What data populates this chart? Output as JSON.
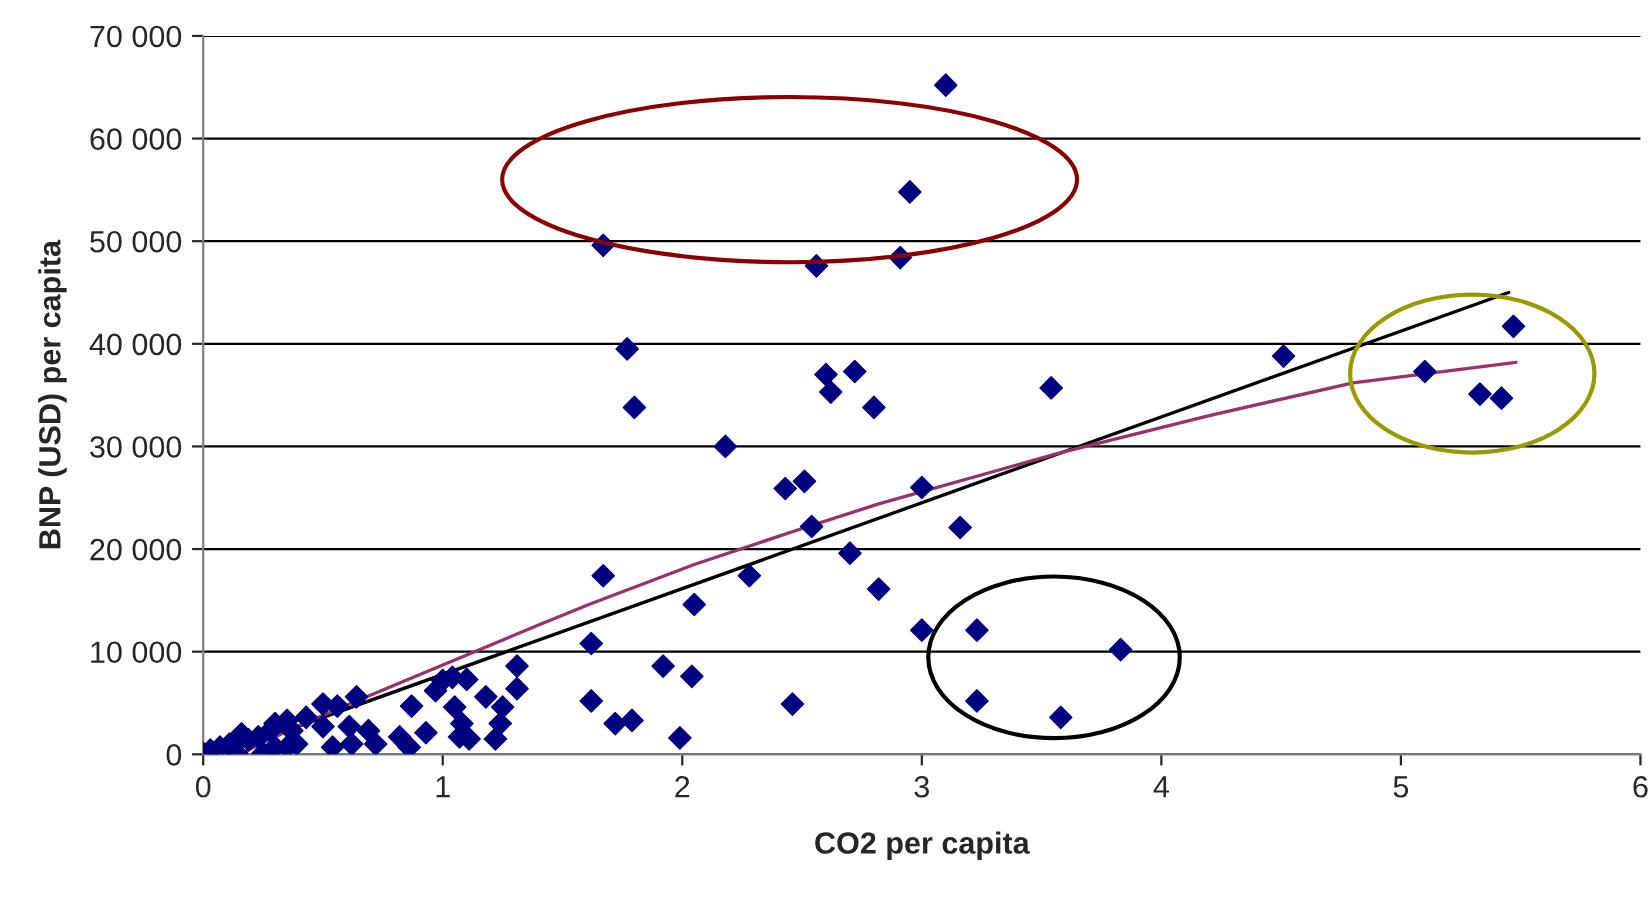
{
  "chart_data": {
    "type": "scatter",
    "xlabel": "CO2 per capita",
    "ylabel": "BNP (USD) per capita",
    "xlim": [
      0,
      6
    ],
    "xticks": [
      0,
      1,
      2,
      3,
      4,
      5,
      6
    ],
    "ylim": [
      0,
      70000
    ],
    "yticks": [
      {
        "value": 0,
        "label": "0"
      },
      {
        "value": 10000,
        "label": "10 000"
      },
      {
        "value": 20000,
        "label": "20 000"
      },
      {
        "value": 30000,
        "label": "30 000"
      },
      {
        "value": 40000,
        "label": "40 000"
      },
      {
        "value": 50000,
        "label": "50 000"
      },
      {
        "value": 60000,
        "label": "60 000"
      },
      {
        "value": 70000,
        "label": "70 000"
      }
    ],
    "grid": "y",
    "legend": false,
    "series": [
      {
        "marker": "diamond",
        "color": "#000080",
        "x": [
          1.67,
          2.56,
          2.91,
          2.95,
          3.1,
          1.77,
          1.8,
          2.18,
          2.6,
          2.72,
          2.62,
          2.8,
          3.54,
          2.43,
          2.51,
          2.54,
          3.0,
          3.16,
          1.67,
          2.28,
          2.7,
          2.05,
          2.82,
          1.62,
          3.0,
          3.23,
          1.92,
          2.04,
          1.62,
          1.72,
          1.79,
          1.99,
          2.46,
          3.23,
          3.58,
          5.47,
          4.51,
          5.1,
          5.33,
          5.42,
          3.83,
          0.5,
          0.56,
          0.64,
          0.5,
          0.54,
          0.61,
          0.62,
          0.69,
          0.72,
          0.82,
          0.86,
          0.87,
          0.93,
          0.97,
          1.0,
          1.04,
          1.1,
          1.05,
          1.08,
          1.07,
          1.11,
          1.18,
          1.25,
          1.24,
          1.22,
          1.31,
          1.31,
          0.0,
          0.03,
          0.07,
          0.11,
          0.16,
          0.19,
          0.23,
          0.28,
          0.3,
          0.35,
          0.37,
          0.35,
          0.3,
          0.43,
          0.25,
          0.14,
          0.39
        ],
        "values": [
          49600,
          47600,
          48400,
          54800,
          65200,
          39500,
          33800,
          30000,
          37000,
          37300,
          35300,
          33800,
          35700,
          25900,
          26600,
          22200,
          26000,
          22100,
          17400,
          17400,
          19600,
          14600,
          16100,
          10800,
          12100,
          12100,
          8600,
          7600,
          5200,
          3000,
          3300,
          1600,
          4900,
          5200,
          3600,
          41700,
          38800,
          37300,
          35100,
          34700,
          10200,
          4900,
          4700,
          5600,
          2700,
          700,
          2700,
          1000,
          2300,
          1000,
          1700,
          700,
          4700,
          2100,
          6200,
          7200,
          7500,
          7300,
          4600,
          3000,
          1700,
          1500,
          5600,
          4600,
          3000,
          1500,
          8600,
          6400,
          100,
          400,
          700,
          1000,
          2000,
          1400,
          1700,
          2300,
          3000,
          3300,
          2300,
          700,
          700,
          3600,
          100,
          100,
          1000
        ]
      },
      {
        "type": "line",
        "marker": "none",
        "color": "#000000",
        "x": [
          0.07,
          5.45
        ],
        "values": [
          0,
          45000
        ]
      },
      {
        "type": "line",
        "marker": "none",
        "color": "#993366",
        "x": [
          0.15,
          0.4,
          0.64,
          1.0,
          1.4,
          1.61,
          2.05,
          2.5,
          2.82,
          3.58,
          4.2,
          4.8,
          5.48
        ],
        "values": [
          0,
          2800,
          5200,
          8700,
          12600,
          14600,
          18500,
          22000,
          24400,
          29400,
          33000,
          36200,
          38200
        ]
      }
    ]
  }
}
